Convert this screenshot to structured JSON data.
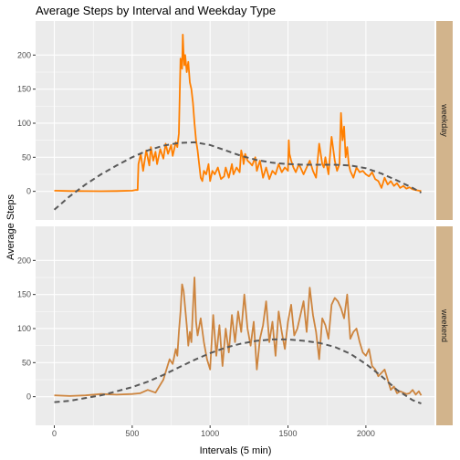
{
  "chart_data": {
    "type": "line",
    "title": "Average Steps by Interval and Weekday Type",
    "xlabel": "Intervals (5 min)",
    "ylabel": "Average Steps",
    "xlim": [
      -120,
      2440
    ],
    "ylim": [
      -42,
      250
    ],
    "x_ticks": [
      0,
      500,
      1000,
      1500,
      2000
    ],
    "y_ticks": [
      0,
      50,
      100,
      150,
      200
    ],
    "grid": true,
    "panels": [
      {
        "strip": "weekday",
        "series": [
          {
            "color": "#FF7F00",
            "style": "solid",
            "x": [
              0,
              100,
              200,
              300,
              400,
              500,
              520,
              535,
              540,
              555,
              570,
              590,
              610,
              620,
              635,
              650,
              660,
              680,
              700,
              715,
              730,
              750,
              760,
              780,
              790,
              800,
              805,
              810,
              820,
              825,
              830,
              835,
              840,
              850,
              860,
              870,
              880,
              890,
              900,
              910,
              920,
              930,
              940,
              950,
              960,
              975,
              990,
              1000,
              1015,
              1030,
              1050,
              1070,
              1090,
              1100,
              1120,
              1140,
              1150,
              1170,
              1190,
              1200,
              1210,
              1215,
              1225,
              1240,
              1255,
              1270,
              1290,
              1300,
              1320,
              1340,
              1360,
              1380,
              1400,
              1420,
              1440,
              1460,
              1480,
              1500,
              1505,
              1510,
              1520,
              1535,
              1550,
              1570,
              1590,
              1600,
              1620,
              1640,
              1660,
              1680,
              1700,
              1720,
              1730,
              1740,
              1760,
              1780,
              1800,
              1815,
              1830,
              1840,
              1850,
              1860,
              1870,
              1880,
              1890,
              1900,
              1920,
              1940,
              1960,
              1980,
              2000,
              2020,
              2040,
              2060,
              2080,
              2100,
              2120,
              2140,
              2160,
              2180,
              2200,
              2220,
              2240,
              2260,
              2280,
              2300,
              2320,
              2340,
              2355
            ],
            "y": [
              1,
              0.5,
              0.3,
              0.2,
              0.5,
              1,
              2,
              2,
              40,
              55,
              30,
              60,
              38,
              65,
              45,
              58,
              40,
              62,
              48,
              70,
              55,
              68,
              52,
              72,
              65,
              85,
              140,
              195,
              180,
              230,
              200,
              185,
              200,
              175,
              190,
              160,
              150,
              130,
              100,
              75,
              60,
              40,
              20,
              15,
              30,
              25,
              40,
              15,
              30,
              25,
              35,
              18,
              22,
              35,
              20,
              40,
              25,
              35,
              28,
              60,
              50,
              40,
              55,
              45,
              42,
              38,
              50,
              30,
              45,
              20,
              35,
              18,
              30,
              25,
              40,
              28,
              35,
              30,
              75,
              55,
              45,
              35,
              28,
              40,
              30,
              25,
              35,
              45,
              30,
              20,
              70,
              40,
              35,
              50,
              25,
              80,
              45,
              30,
              40,
              115,
              75,
              95,
              50,
              65,
              40,
              30,
              20,
              35,
              28,
              30,
              25,
              22,
              28,
              18,
              15,
              5,
              20,
              10,
              15,
              8,
              12,
              5,
              8,
              4,
              6,
              3,
              2,
              1,
              0.5
            ]
          },
          {
            "color": "#595959",
            "style": "dashed",
            "x": [
              0,
              100,
              200,
              300,
              400,
              500,
              600,
              700,
              800,
              900,
              1000,
              1100,
              1200,
              1300,
              1400,
              1500,
              1600,
              1700,
              1800,
              1900,
              2000,
              2100,
              2200,
              2300,
              2355
            ],
            "y": [
              -27,
              -7,
              10,
              25,
              38,
              50,
              60,
              67,
              71,
              72,
              68,
              60,
              52,
              46,
              42,
              40,
              39,
              39,
              39,
              38,
              34,
              26,
              16,
              5,
              -2
            ]
          }
        ]
      },
      {
        "strip": "weekend",
        "series": [
          {
            "color": "#CD853F",
            "style": "solid",
            "x": [
              0,
              100,
              200,
              300,
              400,
              500,
              550,
              600,
              650,
              700,
              720,
              740,
              760,
              780,
              790,
              800,
              810,
              820,
              830,
              840,
              850,
              860,
              870,
              880,
              890,
              900,
              910,
              920,
              940,
              960,
              980,
              1000,
              1020,
              1040,
              1060,
              1080,
              1100,
              1120,
              1140,
              1160,
              1180,
              1200,
              1220,
              1240,
              1260,
              1280,
              1300,
              1320,
              1340,
              1360,
              1380,
              1400,
              1420,
              1440,
              1460,
              1480,
              1500,
              1520,
              1540,
              1560,
              1580,
              1600,
              1620,
              1640,
              1660,
              1680,
              1700,
              1720,
              1740,
              1760,
              1780,
              1800,
              1820,
              1840,
              1860,
              1880,
              1900,
              1920,
              1940,
              1960,
              1980,
              2000,
              2020,
              2040,
              2060,
              2080,
              2100,
              2120,
              2140,
              2160,
              2180,
              2200,
              2220,
              2240,
              2260,
              2280,
              2300,
              2320,
              2340,
              2355
            ],
            "y": [
              2,
              1,
              2,
              4,
              3,
              4,
              5,
              10,
              6,
              25,
              40,
              55,
              48,
              70,
              60,
              95,
              125,
              165,
              155,
              130,
              105,
              75,
              95,
              80,
              130,
              175,
              110,
              90,
              115,
              80,
              55,
              40,
              120,
              60,
              105,
              45,
              100,
              65,
              120,
              80,
              125,
              95,
              150,
              100,
              75,
              110,
              40,
              85,
              105,
              140,
              80,
              110,
              60,
              125,
              95,
              70,
              110,
              135,
              90,
              100,
              120,
              140,
              95,
              160,
              120,
              95,
              55,
              115,
              105,
              85,
              135,
              145,
              140,
              130,
              115,
              150,
              85,
              95,
              100,
              80,
              65,
              60,
              70,
              45,
              40,
              30,
              35,
              40,
              25,
              10,
              15,
              5,
              8,
              6,
              4,
              5,
              10,
              3,
              8,
              2
            ]
          },
          {
            "color": "#595959",
            "style": "dashed",
            "x": [
              0,
              100,
              200,
              300,
              400,
              500,
              600,
              700,
              800,
              900,
              1000,
              1100,
              1200,
              1300,
              1400,
              1500,
              1600,
              1700,
              1800,
              1900,
              2000,
              2100,
              2200,
              2300,
              2355
            ],
            "y": [
              -8,
              -6,
              -2,
              2,
              8,
              14,
              22,
              32,
              43,
              54,
              64,
              72,
              78,
              82,
              84,
              84,
              82,
              79,
              73,
              63,
              48,
              30,
              10,
              -5,
              -10
            ]
          }
        ]
      }
    ]
  }
}
